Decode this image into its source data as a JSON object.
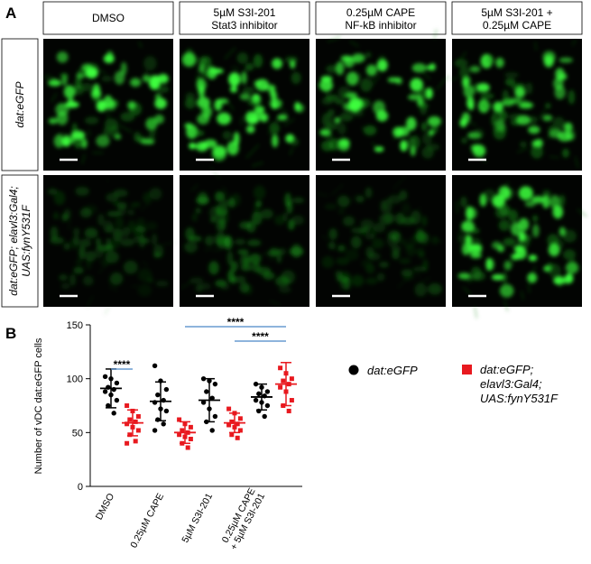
{
  "panel_a": {
    "letter": "A",
    "headers": [
      [
        "DMSO"
      ],
      [
        "5µM S3I-201",
        "Stat3 inhibitor"
      ],
      [
        "0.25µM CAPE",
        "NF-kB inhibitor"
      ],
      [
        "5µM S3I-201 +",
        "0.25µM CAPE"
      ]
    ],
    "row_labels": [
      [
        "dat:eGFP"
      ],
      [
        "dat:eGFP; elavl3:Gal4;",
        "UAS:fynY531F"
      ]
    ]
  },
  "chart_data": {
    "type": "dotplot",
    "letter": "B",
    "ylabel": "Number of vDC dat:eGFP cells",
    "categories": [
      [
        "DMSO"
      ],
      [
        "0.25µM CAPE"
      ],
      [
        "5µM S3I-201"
      ],
      [
        "0.25µM CAPE",
        "+ 5µM S3I-201"
      ]
    ],
    "ylim": [
      0,
      150
    ],
    "yticks": [
      0,
      50,
      100,
      150
    ],
    "series": [
      {
        "name": "dat:eGFP",
        "color": "#000000",
        "marker": "circle",
        "mean": [
          91,
          79,
          80,
          83
        ],
        "sd": [
          18,
          18,
          20,
          12
        ],
        "points": [
          [
            102,
            100,
            96,
            92,
            90,
            88,
            85,
            80,
            75,
            68
          ],
          [
            112,
            98,
            90,
            85,
            80,
            78,
            72,
            70,
            62,
            58,
            52
          ],
          [
            100,
            98,
            95,
            88,
            82,
            78,
            72,
            65,
            60,
            52
          ],
          [
            95,
            92,
            88,
            86,
            84,
            80,
            78,
            75,
            70,
            65
          ]
        ]
      },
      {
        "name": "dat:eGFP; elavl3:Gal4; UAS:fynY531F",
        "color": "#e8191f",
        "marker": "square",
        "mean": [
          59,
          50,
          59,
          95
        ],
        "sd": [
          12,
          10,
          9,
          20
        ],
        "points": [
          [
            75,
            70,
            65,
            62,
            60,
            58,
            55,
            52,
            48,
            42,
            40
          ],
          [
            62,
            58,
            55,
            52,
            50,
            48,
            46,
            44,
            40,
            36
          ],
          [
            72,
            68,
            63,
            60,
            58,
            57,
            55,
            52,
            48,
            45
          ],
          [
            110,
            105,
            100,
            98,
            95,
            92,
            88,
            80,
            75,
            70
          ]
        ]
      }
    ],
    "annotations": [
      "****",
      "****",
      "****"
    ]
  }
}
